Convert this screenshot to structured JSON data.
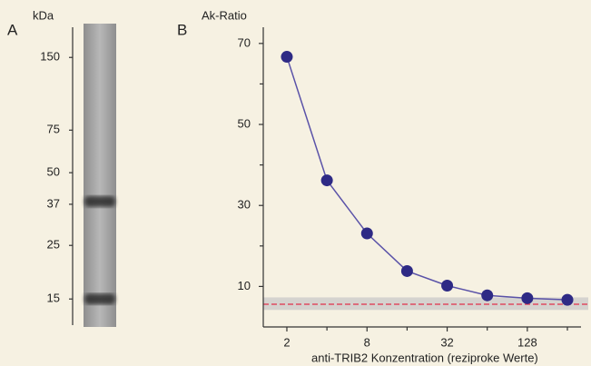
{
  "chart_data": [
    {
      "type": "blot",
      "panel": "A",
      "ylabel": "kDa",
      "log": true,
      "ylim": [
        12,
        200
      ],
      "yticks": [
        150,
        75,
        50,
        37,
        25,
        15
      ],
      "values": [
        38,
        15
      ],
      "color": "#2b2b2b"
    },
    {
      "type": "line",
      "panel": "B",
      "ylabel": "Ak-Ratio",
      "xlabel": "anti-TRIB2 Konzentration (reziproke Werte)",
      "x": [
        2,
        4,
        8,
        16,
        32,
        64,
        128,
        256
      ],
      "xlog": 2,
      "series": [
        {
          "color": "#2e2a85",
          "values": [
            66.7,
            36.2,
            23.1,
            13.8,
            10.2,
            7.8,
            7.1,
            6.7
          ]
        }
      ],
      "xlim": [
        1.33,
        324
      ],
      "xticks": [
        2,
        8,
        32,
        128
      ],
      "xminor": [
        4,
        16,
        64,
        256
      ],
      "ylim": [
        0,
        74
      ],
      "yticks": [
        10,
        30,
        50,
        70
      ],
      "yminor": [
        20,
        40,
        60
      ],
      "reference_band": [
        4.2,
        7.3
      ],
      "reference_line": 5.6
    }
  ]
}
